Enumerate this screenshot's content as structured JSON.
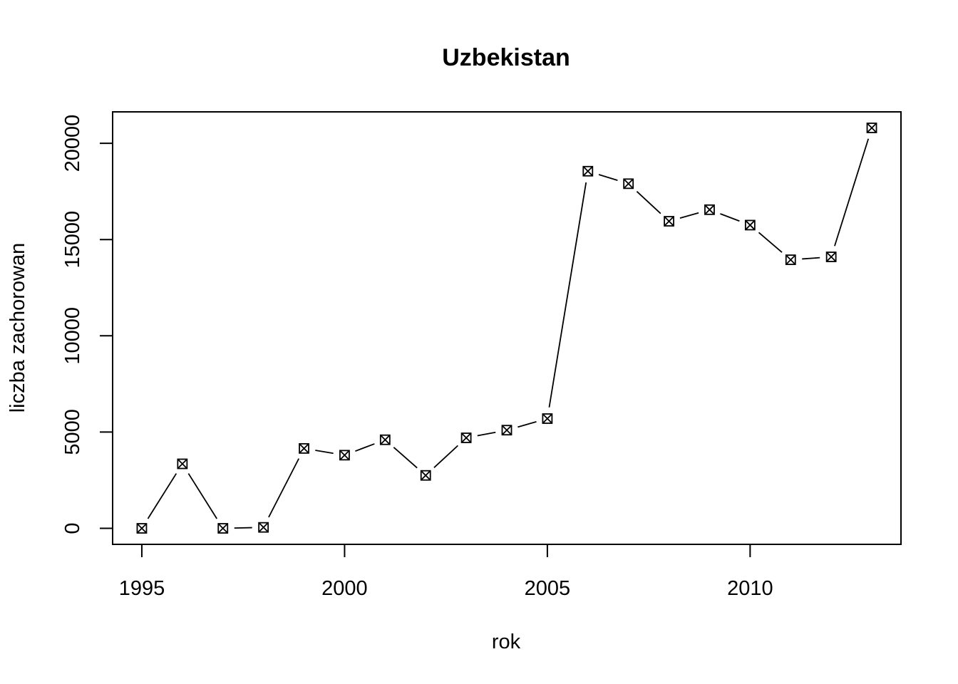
{
  "chart_data": {
    "type": "line",
    "title": "Uzbekistan",
    "xlabel": "rok",
    "ylabel": "liczba zachorowan",
    "x": [
      1995,
      1996,
      1997,
      1998,
      1999,
      2000,
      2001,
      2002,
      2003,
      2004,
      2005,
      2006,
      2007,
      2008,
      2009,
      2010,
      2011,
      2012,
      2013
    ],
    "series": [
      {
        "values": [
          0,
          3350,
          0,
          50,
          4150,
          3800,
          4600,
          2750,
          4700,
          5100,
          5700,
          18550,
          17900,
          15950,
          16550,
          15750,
          13950,
          14100,
          20800
        ]
      }
    ],
    "x_ticks": [
      "1995",
      "2000",
      "2005",
      "2010"
    ],
    "y_ticks": [
      "0",
      "5000",
      "10000",
      "15000",
      "20000"
    ],
    "xlim": [
      1994.28,
      2013.72
    ],
    "ylim": [
      -832,
      21632
    ],
    "grid": false,
    "legend": "none",
    "marker": "box-x",
    "line_color": "#000000"
  }
}
